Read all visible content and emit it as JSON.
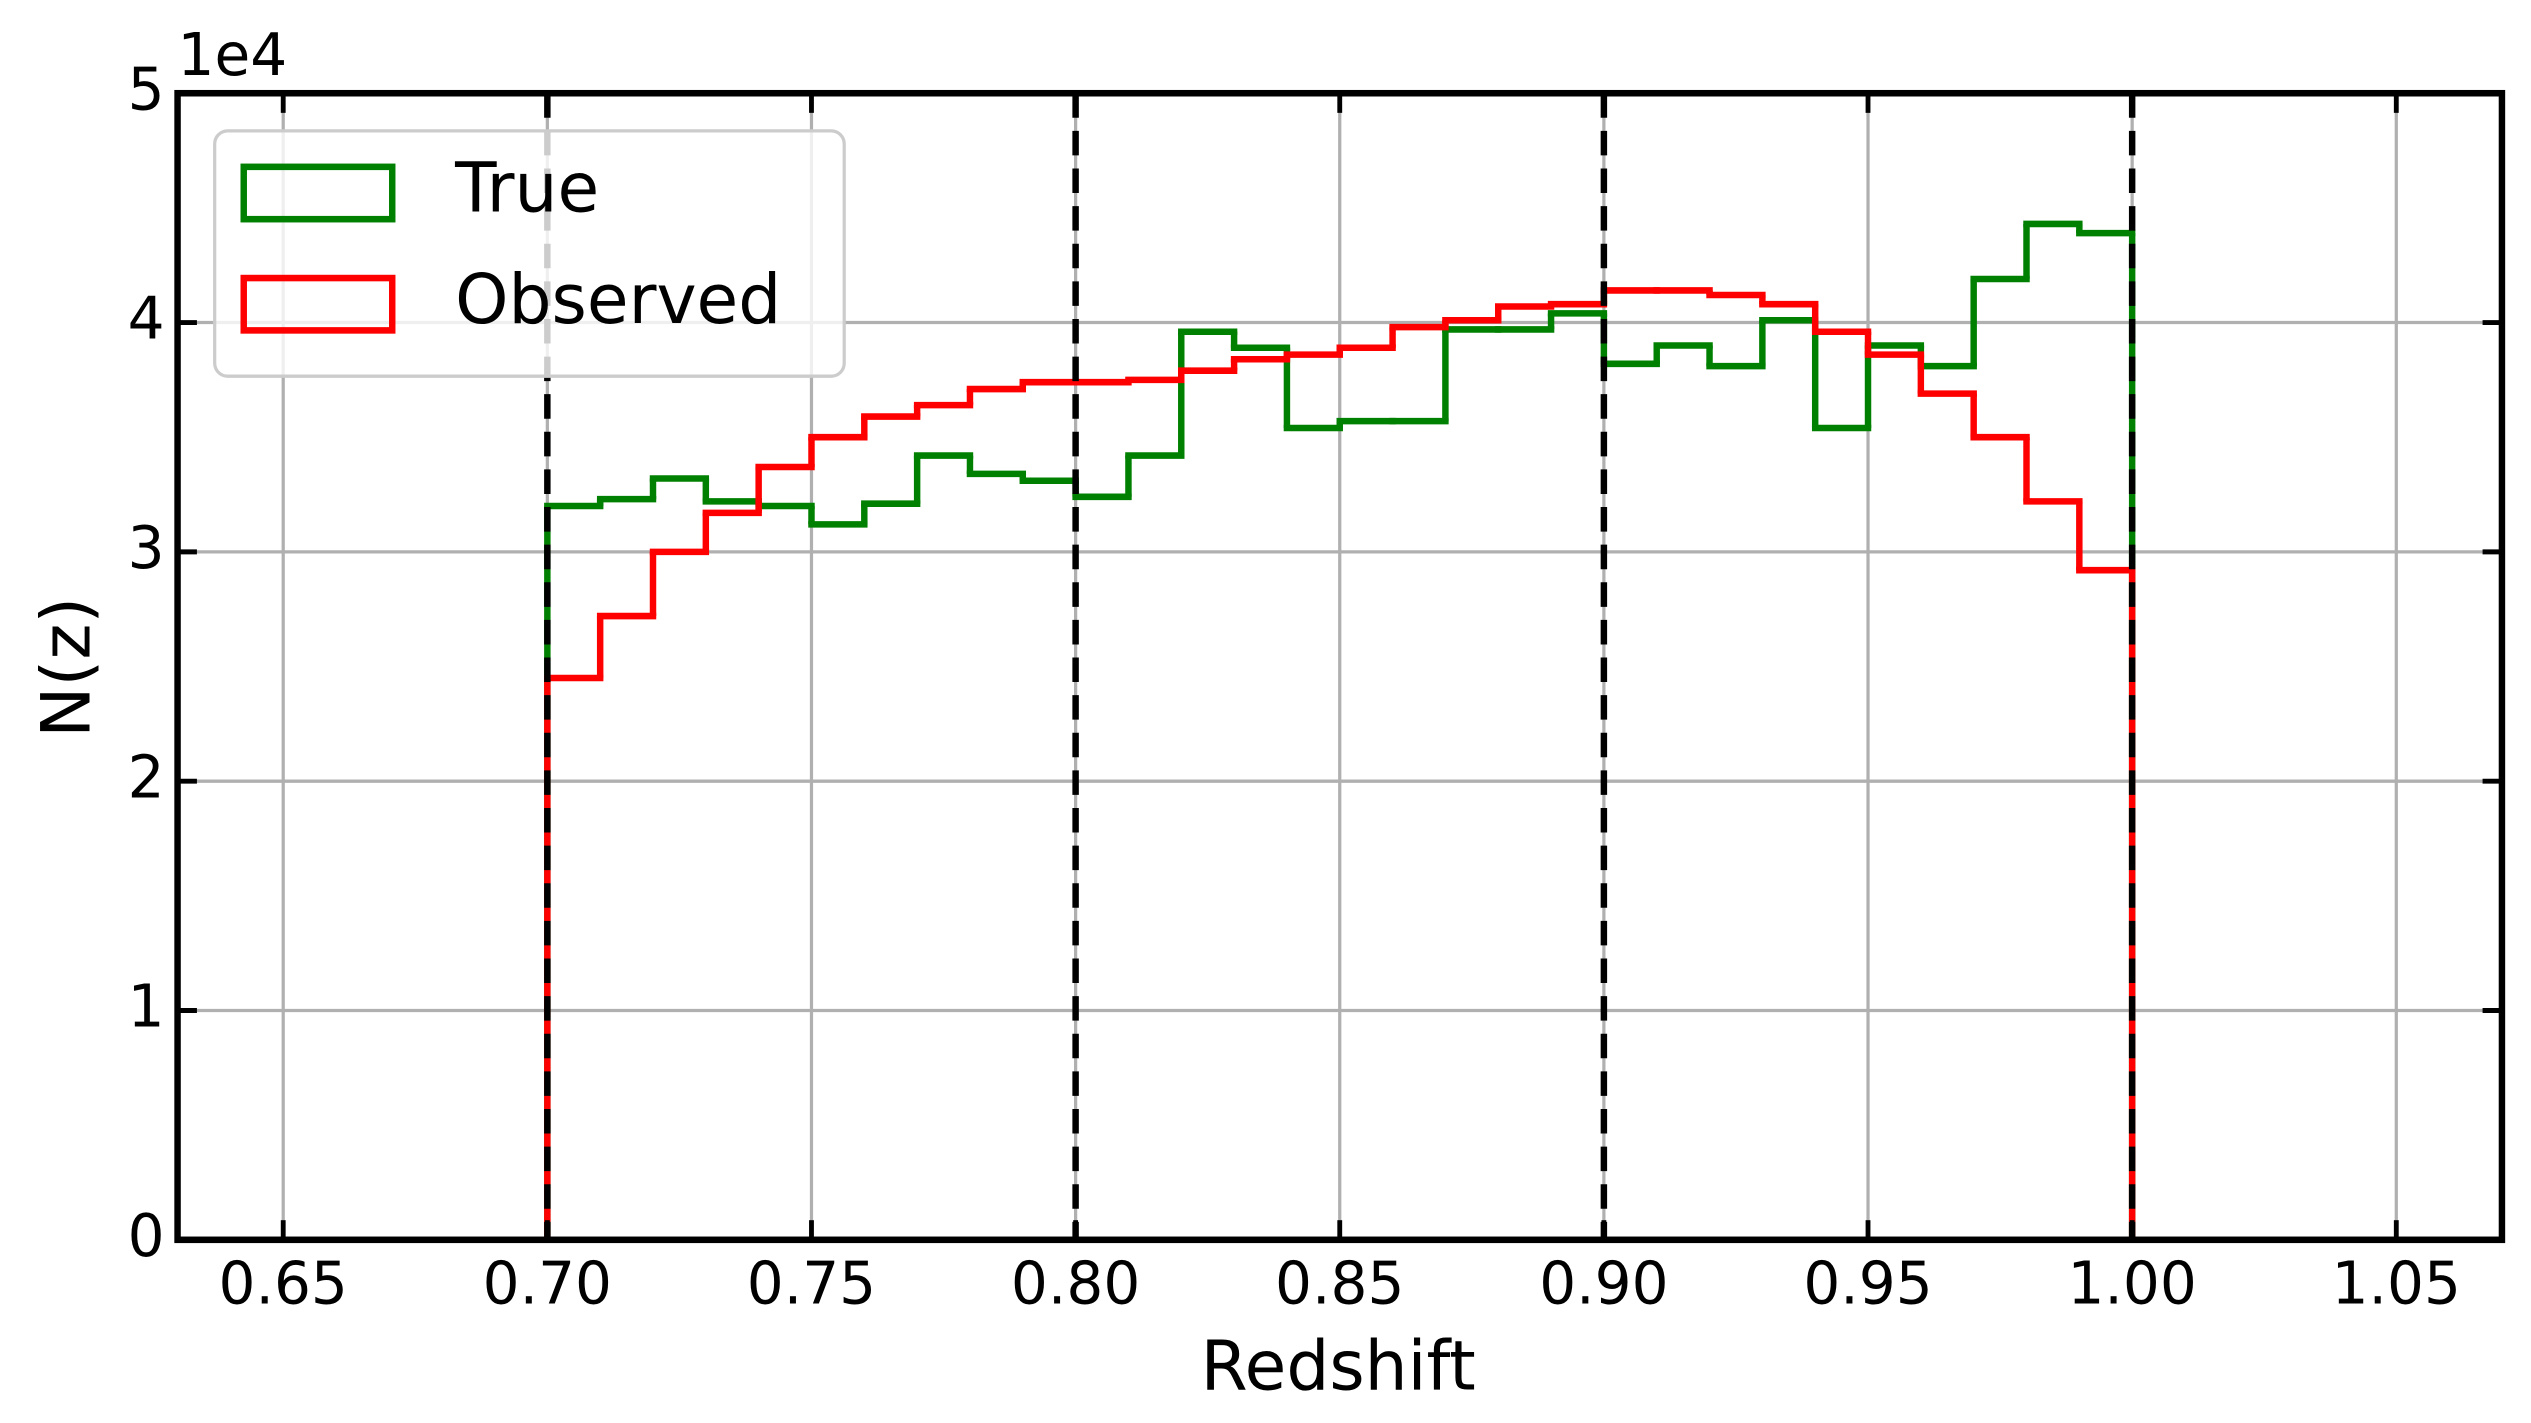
{
  "chart_data": {
    "type": "histogram",
    "xlabel": "Redshift",
    "ylabel": "N(z)",
    "y_offset_label": "1e4",
    "bins": [
      0.7,
      0.71,
      0.72,
      0.73,
      0.74,
      0.75,
      0.76,
      0.77,
      0.78,
      0.79,
      0.8,
      0.81,
      0.82,
      0.83,
      0.84,
      0.85,
      0.86,
      0.87,
      0.88,
      0.89,
      0.9,
      0.91,
      0.92,
      0.93,
      0.94,
      0.95,
      0.96,
      0.97,
      0.98,
      0.99,
      1.0
    ],
    "series": [
      {
        "name": "True",
        "color": "#008000",
        "values": [
          3.2,
          3.23,
          3.32,
          3.22,
          3.2,
          3.12,
          3.21,
          3.42,
          3.34,
          3.31,
          3.24,
          3.42,
          3.96,
          3.89,
          3.54,
          3.57,
          3.57,
          3.97,
          3.97,
          4.04,
          3.82,
          3.9,
          3.81,
          4.01,
          3.54,
          3.9,
          3.81,
          4.19,
          4.43,
          4.39
        ]
      },
      {
        "name": "Observed",
        "color": "#ff0000",
        "values": [
          2.45,
          2.72,
          3.0,
          3.17,
          3.37,
          3.5,
          3.59,
          3.64,
          3.71,
          3.74,
          3.74,
          3.75,
          3.79,
          3.84,
          3.86,
          3.89,
          3.98,
          4.01,
          4.07,
          4.08,
          4.14,
          4.14,
          4.12,
          4.08,
          3.96,
          3.86,
          3.69,
          3.5,
          3.22,
          2.92
        ]
      }
    ],
    "vlines": [
      0.7,
      0.8,
      0.9,
      1.0
    ],
    "xlim": [
      0.63,
      1.07
    ],
    "ylim": [
      0,
      5
    ],
    "xticks": [
      0.65,
      {
        "value": 0.7,
        "label": "0.70"
      },
      0.75,
      {
        "value": 0.8,
        "label": "0.80"
      },
      0.85,
      {
        "value": 0.9,
        "label": "0.90"
      },
      0.95,
      {
        "value": 1.0,
        "label": "1.00"
      },
      1.05
    ],
    "yticks": [
      0,
      1,
      2,
      3,
      4,
      5
    ],
    "grid": true,
    "legend": "upper left"
  }
}
